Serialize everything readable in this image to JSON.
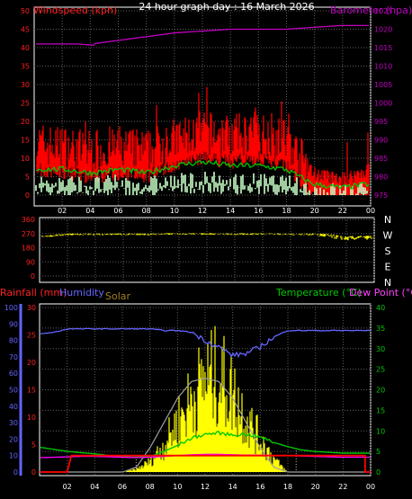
{
  "title": "24 hour graph day : 16 March 2026",
  "x_ticks": [
    "02",
    "04",
    "06",
    "08",
    "10",
    "12",
    "14",
    "16",
    "18",
    "20",
    "22",
    "00"
  ],
  "wind_panel": {
    "left_label": "Windspeed (kph)",
    "right_label": "Barometer (hpa)",
    "left_ticks": [
      "0",
      "5",
      "10",
      "15",
      "20",
      "25",
      "30",
      "35",
      "40",
      "45",
      "50"
    ],
    "right_ticks": [
      "975",
      "980",
      "985",
      "990",
      "995",
      "1000",
      "1005",
      "1010",
      "1015",
      "1020",
      "1025"
    ]
  },
  "dir_panel": {
    "left_ticks": [
      "0",
      "90",
      "180",
      "270",
      "360"
    ],
    "compass": [
      "N",
      "W",
      "S",
      "E",
      "N"
    ]
  },
  "lower_panel": {
    "labels": {
      "rainfall": "Rainfall (mm)",
      "humidity": "Humidity",
      "solar": "Solar",
      "temperature": "Temperature (°C)",
      "dewpoint": "Dew Point (°C)"
    },
    "humidity_ticks": [
      "0",
      "10",
      "20",
      "30",
      "40",
      "50",
      "60",
      "70",
      "80",
      "90",
      "100"
    ],
    "rain_ticks": [
      "0",
      "5",
      "10",
      "15",
      "20",
      "25",
      "30"
    ],
    "temp_ticks": [
      "0",
      "5",
      "10",
      "15",
      "20",
      "25",
      "30",
      "35",
      "40"
    ]
  },
  "colors": {
    "gust": "#ff0000",
    "windspeed": "#00c800",
    "wind_avg": "#c8ffc8",
    "barometer": "#c000c0",
    "direction": "#ffff00",
    "humidity": "#6464ff",
    "rainfall": "#ff0000",
    "temperature": "#00c800",
    "dewpoint": "#ff00ff",
    "solar": "#ffff00",
    "solar_max": "#a0a0a0"
  },
  "chart_data": [
    {
      "type": "line",
      "title": "24 hour graph day : 16 March 2026",
      "x_hours": [
        0,
        2,
        4,
        6,
        8,
        10,
        12,
        14,
        16,
        18,
        20,
        22,
        24
      ],
      "series": [
        {
          "name": "Windspeed (kph)",
          "axis": "left",
          "ylim": [
            0,
            50
          ],
          "values": [
            14,
            13,
            12,
            13,
            12,
            15,
            17,
            16,
            17,
            15,
            6,
            4,
            7
          ]
        },
        {
          "name": "Windspeed (kph)",
          "axis": "left",
          "ylim": [
            0,
            50
          ],
          "kind": "average",
          "values": [
            7,
            7,
            6,
            7,
            6,
            8,
            9,
            8,
            8,
            7,
            3,
            2,
            3
          ]
        },
        {
          "name": "Barometer (hpa)",
          "axis": "right",
          "ylim": [
            975,
            1025
          ],
          "values": [
            1016,
            1016,
            1016,
            1017,
            1018,
            1019,
            1019.5,
            1020,
            1020,
            1020,
            1020.5,
            1021,
            1021
          ]
        }
      ]
    },
    {
      "type": "scatter",
      "x_hours": [
        0,
        2,
        4,
        6,
        8,
        10,
        12,
        14,
        16,
        18,
        20,
        22,
        24
      ],
      "ylim": [
        0,
        360
      ],
      "series": [
        {
          "name": "Direction",
          "values": [
            250,
            265,
            265,
            265,
            265,
            268,
            268,
            265,
            268,
            265,
            265,
            240,
            245
          ]
        }
      ]
    },
    {
      "type": "line",
      "x_hours": [
        0,
        1,
        2,
        3,
        4,
        5,
        6,
        7,
        8,
        9,
        10,
        11,
        12,
        13,
        14,
        15,
        16,
        17,
        18,
        19,
        20,
        21,
        22,
        23,
        24
      ],
      "series": [
        {
          "name": "Humidity",
          "axis": "humidity",
          "ylim": [
            0,
            100
          ],
          "values": [
            84,
            85,
            87,
            87,
            87,
            87,
            87,
            87,
            87,
            86,
            86,
            85,
            80,
            76,
            71,
            72,
            76,
            82,
            86,
            86,
            86,
            86,
            86,
            86,
            86
          ]
        },
        {
          "name": "Temperature (°C)",
          "axis": "temp",
          "ylim": [
            0,
            40
          ],
          "values": [
            6,
            5.5,
            5,
            4.7,
            4.4,
            4,
            3.7,
            3.6,
            3.8,
            5,
            6.5,
            8.2,
            9.2,
            9.5,
            9.0,
            9.2,
            8.5,
            7.2,
            6.2,
            5.4,
            5,
            4.8,
            4.6,
            4.6,
            4.6
          ]
        },
        {
          "name": "Dew Point (°C)",
          "axis": "temp",
          "ylim": [
            0,
            40
          ],
          "values": [
            3.5,
            3.6,
            3.7,
            3.8,
            3.8,
            3.7,
            3.6,
            3.5,
            3.6,
            3.8,
            4.0,
            4.2,
            4.3,
            4.3,
            4.2,
            4.1,
            4.1,
            4.0,
            4.0,
            3.9,
            3.8,
            3.7,
            3.6,
            3.6,
            3.6
          ]
        },
        {
          "name": "Rainfall (mm)",
          "axis": "rain",
          "ylim": [
            0,
            30
          ],
          "values": [
            0,
            0,
            3,
            3,
            3,
            3,
            3,
            3,
            3,
            3,
            3,
            3,
            3,
            3,
            3,
            3,
            3,
            3,
            3,
            3,
            3,
            3,
            3,
            3,
            0
          ]
        },
        {
          "name": "Solar",
          "axis": "solar",
          "ylim": [
            0,
            100
          ],
          "kind": "area",
          "values": [
            0,
            0,
            0,
            0,
            0,
            0,
            0,
            2,
            8,
            20,
            38,
            55,
            70,
            72,
            60,
            40,
            25,
            10,
            0,
            0,
            0,
            0,
            0,
            0,
            0
          ]
        },
        {
          "name": "Solar",
          "axis": "solar",
          "ylim": [
            0,
            100
          ],
          "kind": "max",
          "values": [
            0,
            0,
            0,
            0,
            0,
            0,
            0,
            3,
            15,
            30,
            45,
            55,
            57,
            55,
            45,
            30,
            15,
            3,
            0,
            0,
            0,
            0,
            0,
            0,
            0
          ]
        }
      ]
    }
  ]
}
